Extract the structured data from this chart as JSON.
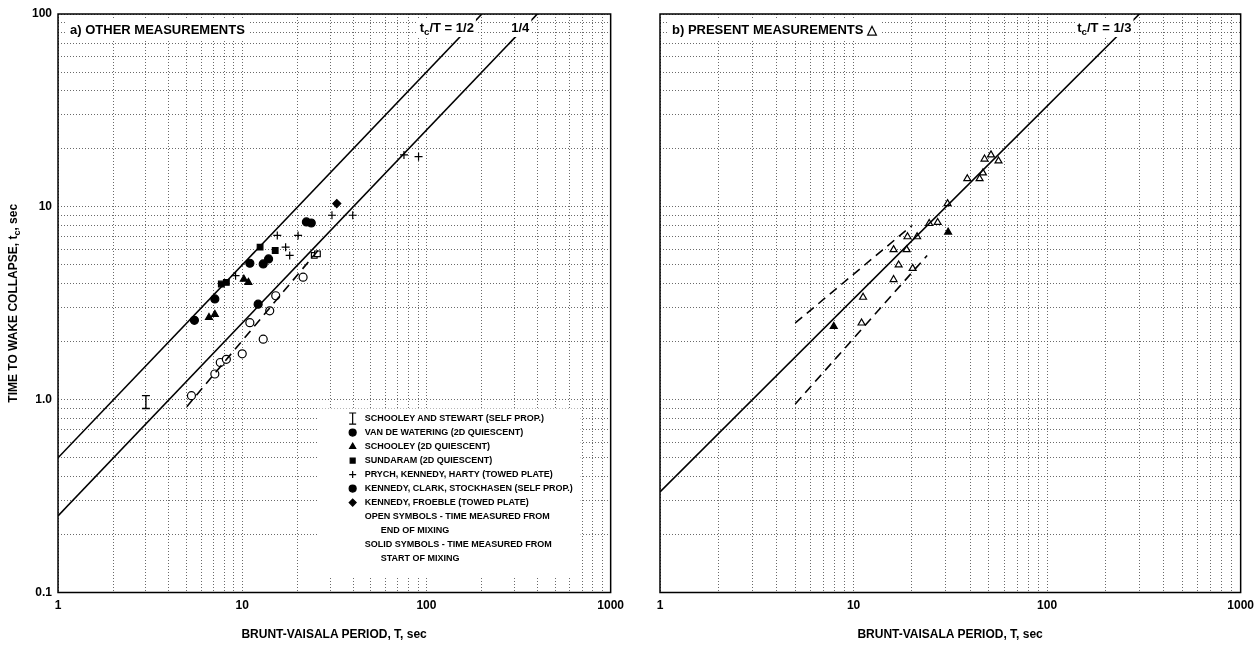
{
  "chart_data": [
    {
      "type": "scatter",
      "title": "a) OTHER MEASUREMENTS",
      "xlabel": "BRUNT-VAISALA PERIOD, T, sec",
      "ylabel": "TIME TO WAKE COLLAPSE, t$_{c}$, sec",
      "log": "xy",
      "grid": true,
      "legend": "bottom right",
      "xlim": [
        1,
        1000
      ],
      "ylim": [
        0.1,
        100
      ],
      "xticks": [
        1,
        {
          "value": 2,
          "label": null
        },
        {
          "value": 3,
          "label": null
        },
        {
          "value": 4,
          "label": null
        },
        {
          "value": 5,
          "label": null
        },
        {
          "value": 6,
          "label": null
        },
        {
          "value": 7,
          "label": null
        },
        {
          "value": 8,
          "label": null
        },
        {
          "value": 9,
          "label": null
        },
        10,
        {
          "value": 20,
          "label": null
        },
        {
          "value": 30,
          "label": null
        },
        {
          "value": 40,
          "label": null
        },
        {
          "value": 50,
          "label": null
        },
        {
          "value": 60,
          "label": null
        },
        {
          "value": 70,
          "label": null
        },
        {
          "value": 80,
          "label": null
        },
        {
          "value": 90,
          "label": null
        },
        100,
        {
          "value": 200,
          "label": null
        },
        {
          "value": 300,
          "label": null
        },
        {
          "value": 400,
          "label": null
        },
        {
          "value": 500,
          "label": null
        },
        {
          "value": 600,
          "label": null
        },
        {
          "value": 700,
          "label": null
        },
        {
          "value": 800,
          "label": null
        },
        {
          "value": 900,
          "label": null
        },
        1000
      ],
      "yticks": [
        0.1,
        {
          "value": 0.2,
          "label": null
        },
        {
          "value": 0.3,
          "label": null
        },
        {
          "value": 0.4,
          "label": null
        },
        {
          "value": 0.5,
          "label": null
        },
        {
          "value": 0.6,
          "label": null
        },
        {
          "value": 0.7,
          "label": null
        },
        {
          "value": 0.8,
          "label": null
        },
        {
          "value": 0.9,
          "label": null
        },
        {
          "value": 1,
          "label": "1.0"
        },
        {
          "value": 2,
          "label": null
        },
        {
          "value": 3,
          "label": null
        },
        {
          "value": 4,
          "label": null
        },
        {
          "value": 5,
          "label": null
        },
        {
          "value": 6,
          "label": null
        },
        {
          "value": 7,
          "label": null
        },
        {
          "value": 8,
          "label": null
        },
        {
          "value": 9,
          "label": null
        },
        10,
        {
          "value": 20,
          "label": null
        },
        {
          "value": 30,
          "label": null
        },
        {
          "value": 40,
          "label": null
        },
        {
          "value": 50,
          "label": null
        },
        {
          "value": 60,
          "label": null
        },
        {
          "value": 70,
          "label": null
        },
        {
          "value": 80,
          "label": null
        },
        {
          "value": 90,
          "label": null
        },
        100
      ],
      "series": [
        {
          "name": "t$_{c}$/T = 1/2",
          "type": "line",
          "line_style": "solid",
          "color": "#000000",
          "x": [
            1,
            200
          ],
          "values": [
            0.5,
            100
          ]
        },
        {
          "name": "1/4",
          "type": "line",
          "line_style": "solid",
          "color": "#000000",
          "x": [
            1,
            400
          ],
          "values": [
            0.25,
            100
          ]
        },
        {
          "type": "line",
          "line_style": "dashed",
          "color": "#000000",
          "x": [
            5,
            26
          ],
          "values": [
            0.92,
            6.0
          ]
        },
        {
          "name": "SCHOOLEY AND STEWART (SELF PROP.)",
          "type": "scatter",
          "color": "#000000",
          "x": [
            3
          ],
          "values": [
            0.97
          ],
          "errors": [
            [
              0.9,
              1.05
            ]
          ]
        },
        {
          "name": "VAN DE WATERING (2D QUIESCENT)",
          "type": "scatter",
          "marker": "circle",
          "color": "#000000",
          "x": [
            5.5,
            7.1,
            11.0,
            12.2,
            13.0,
            13.9
          ],
          "values": [
            2.58,
            3.33,
            5.1,
            3.13,
            5.06,
            5.37
          ]
        },
        {
          "type": "scatter",
          "marker": "circle",
          "color": "#ffffff",
          "x": [
            5.3,
            7.1,
            7.6,
            8.2,
            10.0,
            11.0,
            13.0,
            14.1,
            15.2,
            21.4
          ],
          "values": [
            1.05,
            1.36,
            1.56,
            1.62,
            1.73,
            2.51,
            2.06,
            2.89,
            3.46,
            4.32
          ]
        },
        {
          "name": "SCHOOLEY (2D QUIESCENT)",
          "type": "scatter",
          "marker": "triangle",
          "color": "#000000",
          "x": [
            6.6,
            7.1,
            10.2,
            10.8
          ],
          "values": [
            2.67,
            2.77,
            4.22,
            4.06
          ]
        },
        {
          "name": "SUNDARAM (2D QUIESCENT)",
          "type": "scatter",
          "marker": "square",
          "color": "#000000",
          "x": [
            7.7,
            8.2,
            12.5,
            15.1
          ],
          "values": [
            3.98,
            4.06,
            6.18,
            5.94
          ]
        },
        {
          "type": "scatter",
          "marker": "square",
          "color": "#ffffff",
          "x": [
            24.6,
            25.6
          ],
          "values": [
            5.6,
            5.71
          ]
        },
        {
          "name": "PRYCH, KENNEDY, HARTY (TOWED PLATE)",
          "type": "scatter",
          "marker": "cross",
          "color": "#000000",
          "x": [
            9.2,
            15.5,
            17.2,
            18.1,
            20.1,
            30.7,
            39.8,
            75.5,
            90.6
          ],
          "values": [
            4.4,
            7.11,
            6.18,
            5.6,
            7.11,
            9.05,
            9.05,
            18.6,
            18.2
          ]
        },
        {
          "name": "KENNEDY, CLARK, STOCKHASEN (SELF PROP.)",
          "type": "scatter",
          "marker": "circle",
          "color": "#000000",
          "x": [
            22.3,
            23.7
          ],
          "values": [
            8.35,
            8.25
          ]
        },
        {
          "name": "KENNEDY, FROEBLE (TOWED PLATE)",
          "type": "scatter",
          "marker": "diamond",
          "color": "#000000",
          "x": [
            32.6
          ],
          "values": [
            10.4
          ]
        }
      ],
      "annotations": [
        "OPEN SYMBOLS - TIME MEASURED FROM END OF MIXING",
        "SOLID SYMBOLS - TIME MEASURED FROM START OF MIXING"
      ]
    },
    {
      "type": "scatter",
      "title": "b) PRESENT MEASUREMENTS △",
      "xlabel": "BRUNT-VAISALA PERIOD, T, sec",
      "log": "xy",
      "grid": true,
      "tick_labels": "x",
      "xlim": [
        1,
        1000
      ],
      "ylim": [
        0.1,
        100
      ],
      "xticks": [
        1,
        {
          "value": 2,
          "label": null
        },
        {
          "value": 3,
          "label": null
        },
        {
          "value": 4,
          "label": null
        },
        {
          "value": 5,
          "label": null
        },
        {
          "value": 6,
          "label": null
        },
        {
          "value": 7,
          "label": null
        },
        {
          "value": 8,
          "label": null
        },
        {
          "value": 9,
          "label": null
        },
        10,
        {
          "value": 20,
          "label": null
        },
        {
          "value": 30,
          "label": null
        },
        {
          "value": 40,
          "label": null
        },
        {
          "value": 50,
          "label": null
        },
        {
          "value": 60,
          "label": null
        },
        {
          "value": 70,
          "label": null
        },
        {
          "value": 80,
          "label": null
        },
        {
          "value": 90,
          "label": null
        },
        100,
        {
          "value": 200,
          "label": null
        },
        {
          "value": 300,
          "label": null
        },
        {
          "value": 400,
          "label": null
        },
        {
          "value": 500,
          "label": null
        },
        {
          "value": 600,
          "label": null
        },
        {
          "value": 700,
          "label": null
        },
        {
          "value": 800,
          "label": null
        },
        {
          "value": 900,
          "label": null
        },
        1000
      ],
      "yticks": [
        0.1,
        {
          "value": 0.2,
          "label": null
        },
        {
          "value": 0.3,
          "label": null
        },
        {
          "value": 0.4,
          "label": null
        },
        {
          "value": 0.5,
          "label": null
        },
        {
          "value": 0.6,
          "label": null
        },
        {
          "value": 0.7,
          "label": null
        },
        {
          "value": 0.8,
          "label": null
        },
        {
          "value": 0.9,
          "label": null
        },
        {
          "value": 1,
          "label": null
        },
        {
          "value": 2,
          "label": null
        },
        {
          "value": 3,
          "label": null
        },
        {
          "value": 4,
          "label": null
        },
        {
          "value": 5,
          "label": null
        },
        {
          "value": 6,
          "label": null
        },
        {
          "value": 7,
          "label": null
        },
        {
          "value": 8,
          "label": null
        },
        {
          "value": 9,
          "label": null
        },
        10,
        {
          "value": 20,
          "label": null
        },
        {
          "value": 30,
          "label": null
        },
        {
          "value": 40,
          "label": null
        },
        {
          "value": 50,
          "label": null
        },
        {
          "value": 60,
          "label": null
        },
        {
          "value": 70,
          "label": null
        },
        {
          "value": 80,
          "label": null
        },
        {
          "value": 90,
          "label": null
        },
        100
      ],
      "series": [
        {
          "name": "t$_{c}$/T = 1/3",
          "type": "line",
          "line_style": "solid",
          "color": "#000000",
          "x": [
            1,
            300
          ],
          "values": [
            0.333,
            100
          ]
        },
        {
          "type": "line",
          "line_style": "dashed",
          "color": "#000000",
          "x": [
            5,
            20
          ],
          "values": [
            2.5,
            8.0
          ]
        },
        {
          "type": "line",
          "line_style": "dashed",
          "color": "#000000",
          "x": [
            5,
            24
          ],
          "values": [
            0.95,
            5.6
          ]
        },
        {
          "type": "scatter",
          "marker": "triangle",
          "color": "#ffffff",
          "x": [
            11.0,
            11.2,
            16.1,
            17.1,
            20.2,
            16.1,
            18.8,
            19.0,
            21.3,
            24.6,
            27.2,
            30.6,
            38.7,
            44.8,
            46.6,
            47.5,
            51.3,
            56.1
          ],
          "values": [
            2.5,
            3.4,
            4.2,
            5.0,
            4.8,
            6.0,
            6.0,
            7.0,
            7.0,
            8.2,
            8.3,
            10.4,
            14,
            14,
            15,
            17.7,
            18.6,
            17.3
          ]
        },
        {
          "type": "scatter",
          "marker": "triangle",
          "color": "#000000",
          "x": [
            7.9,
            30.8
          ],
          "values": [
            2.4,
            7.4
          ]
        }
      ]
    }
  ]
}
